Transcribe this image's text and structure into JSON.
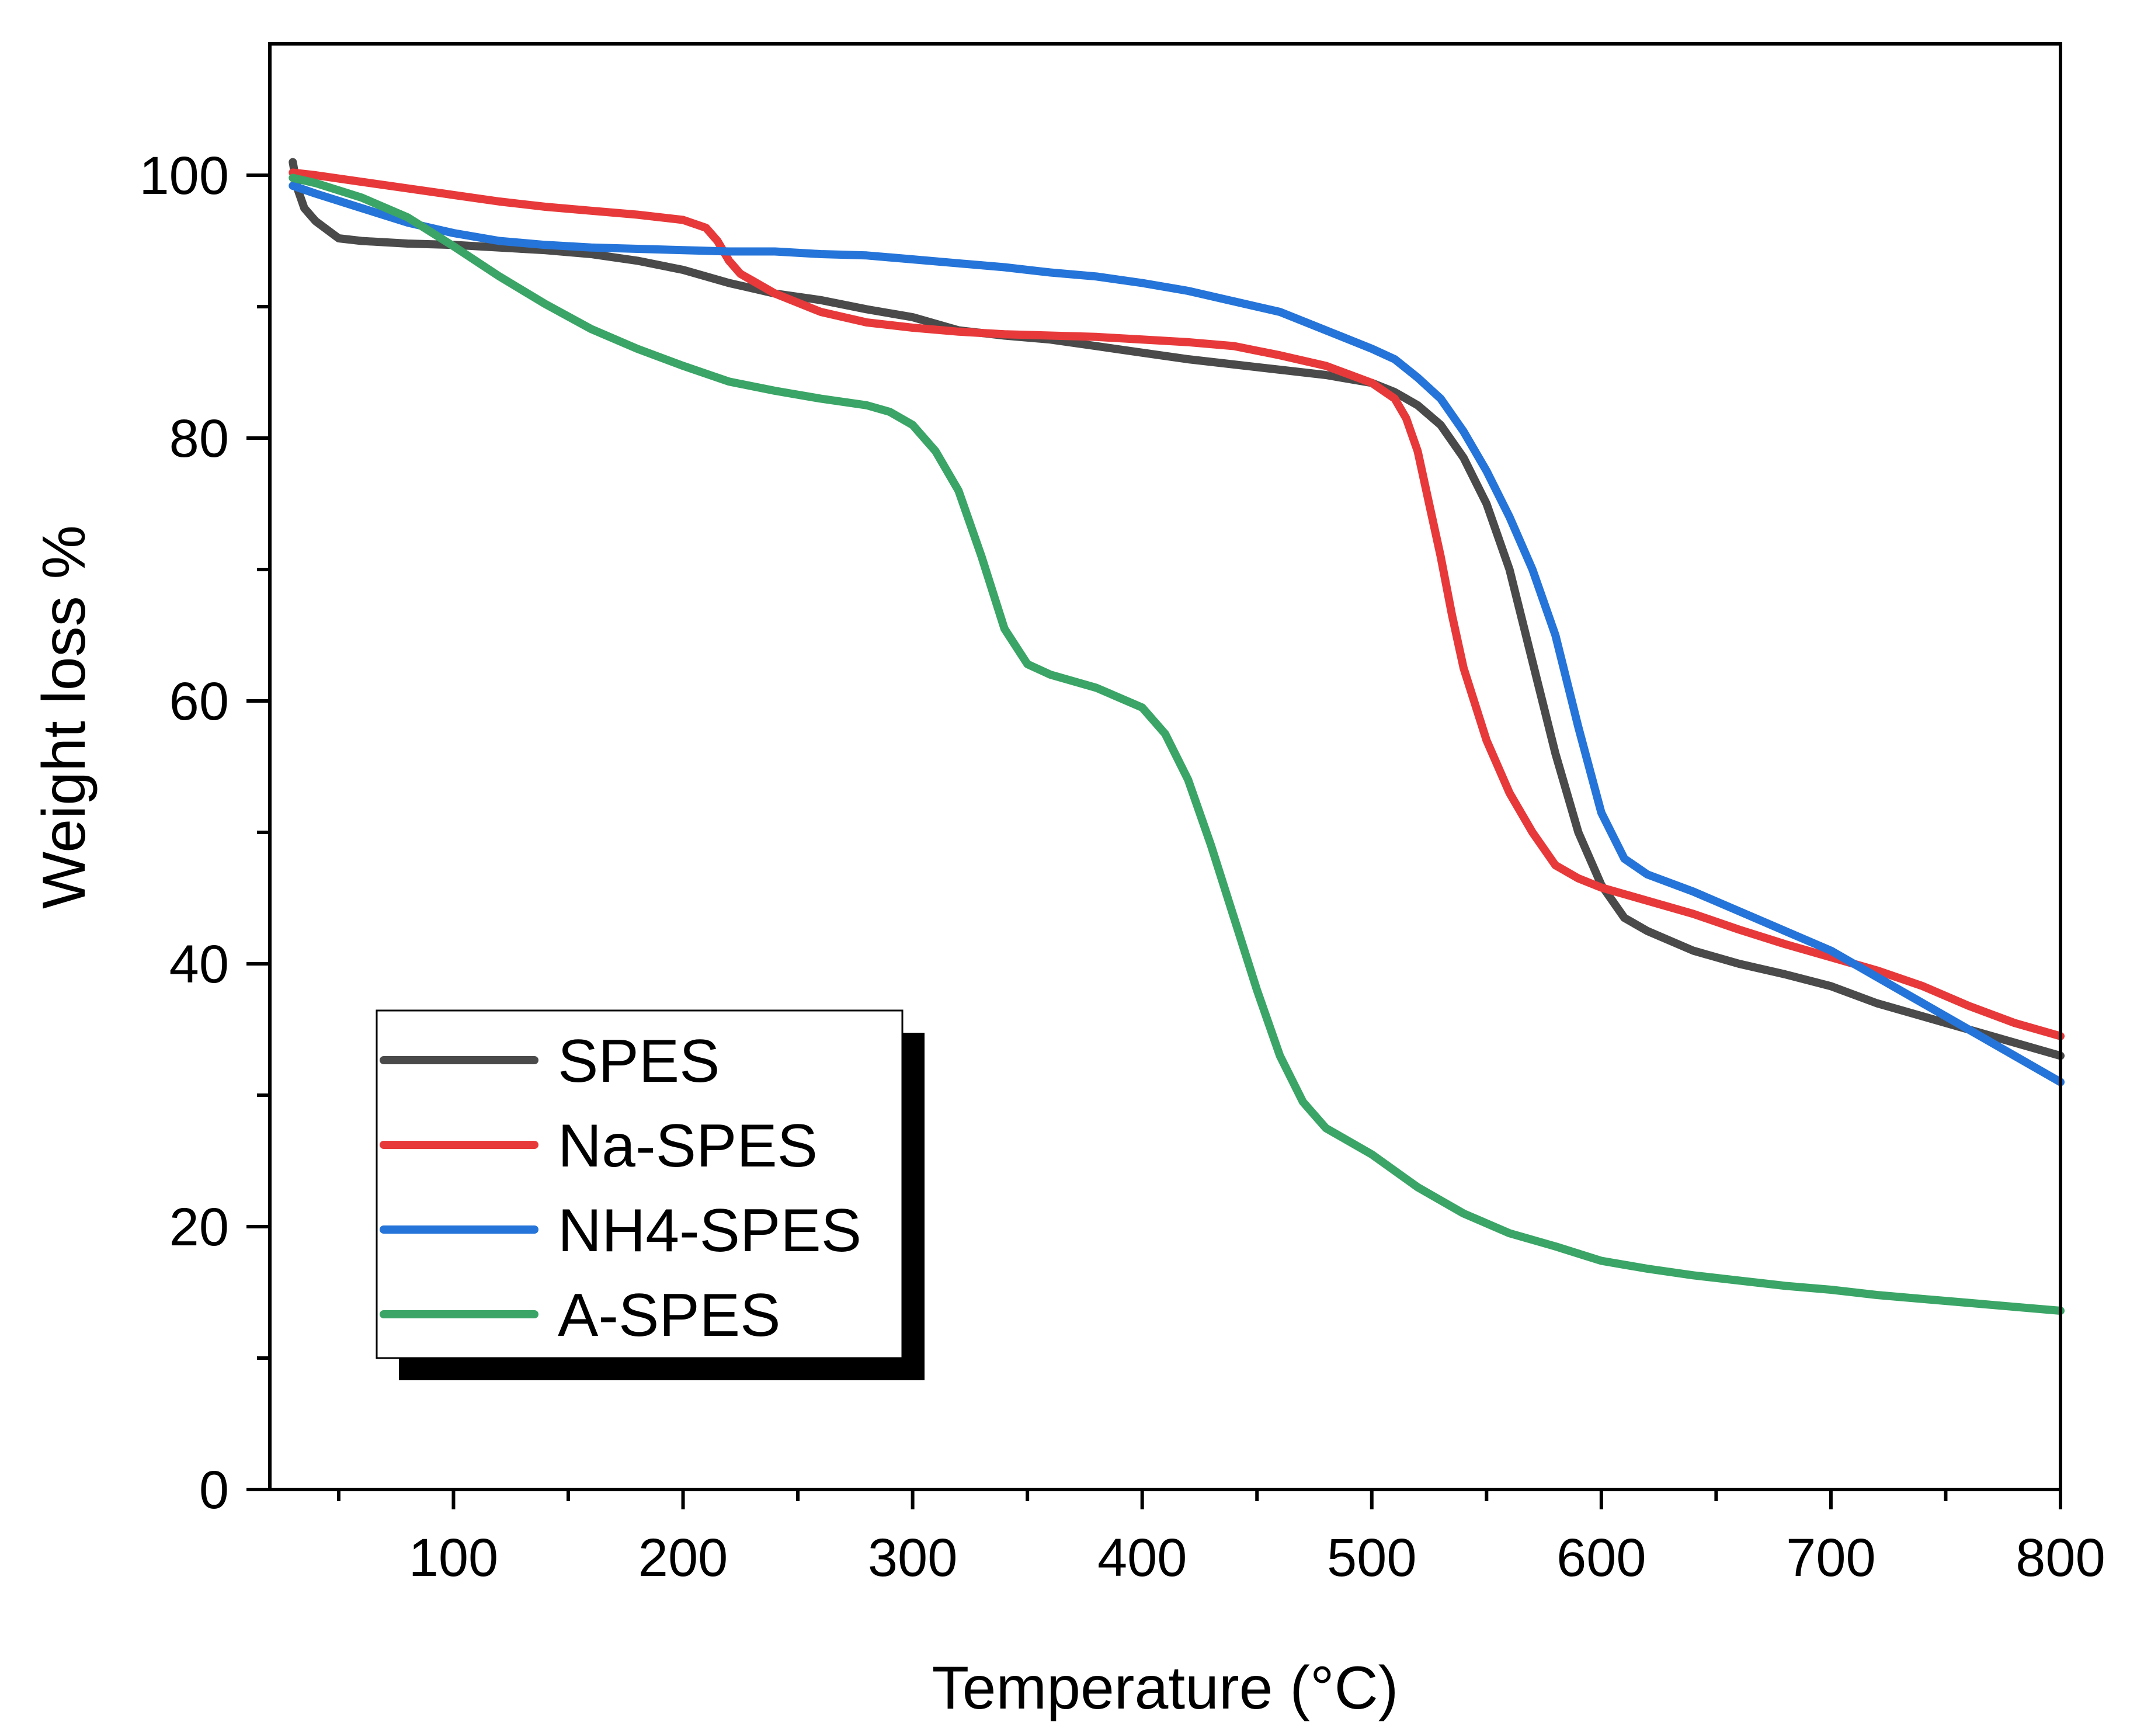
{
  "chart_data": {
    "type": "line",
    "title": "",
    "xlabel": "Temperature (°C)",
    "ylabel": "Weight loss %",
    "xlim": [
      20,
      800
    ],
    "ylim": [
      0,
      110
    ],
    "xticks": [
      100,
      200,
      300,
      400,
      500,
      600,
      700,
      800
    ],
    "xtick_labels": [
      "100",
      "200",
      "300",
      "400",
      "500",
      "600",
      "700",
      "800"
    ],
    "xticks_minor": [
      50,
      150,
      250,
      350,
      450,
      550,
      650,
      750
    ],
    "yticks": [
      0,
      20,
      40,
      60,
      80,
      100
    ],
    "ytick_labels": [
      "0",
      "20",
      "40",
      "60",
      "80",
      "100"
    ],
    "yticks_minor": [
      10,
      30,
      50,
      70,
      90
    ],
    "grid": false,
    "legend_position": "bottom-left",
    "series": [
      {
        "name": "SPES",
        "color": "#4a4a4a",
        "x": [
          30,
          32,
          35,
          40,
          50,
          60,
          80,
          100,
          120,
          140,
          160,
          180,
          200,
          220,
          240,
          260,
          280,
          300,
          320,
          340,
          360,
          380,
          400,
          420,
          440,
          460,
          480,
          500,
          510,
          520,
          530,
          540,
          550,
          560,
          570,
          580,
          590,
          600,
          610,
          620,
          640,
          660,
          680,
          700,
          720,
          740,
          760,
          780,
          800
        ],
        "y": [
          101,
          99,
          97.5,
          96.5,
          95.2,
          95,
          94.8,
          94.7,
          94.5,
          94.3,
          94,
          93.5,
          92.8,
          91.8,
          91,
          90.5,
          89.8,
          89.2,
          88.2,
          87.8,
          87.5,
          87,
          86.5,
          86,
          85.6,
          85.2,
          84.8,
          84.2,
          83.5,
          82.5,
          81,
          78.5,
          75,
          70,
          63,
          56,
          50,
          46,
          43.5,
          42.5,
          41,
          40,
          39.2,
          38.3,
          37,
          36,
          35,
          34,
          33
        ]
      },
      {
        "name": "Na-SPES",
        "color": "#e8393a",
        "x": [
          30,
          40,
          60,
          80,
          100,
          120,
          140,
          160,
          180,
          200,
          210,
          215,
          220,
          225,
          230,
          240,
          250,
          260,
          280,
          300,
          320,
          340,
          360,
          380,
          400,
          420,
          440,
          460,
          480,
          500,
          510,
          515,
          520,
          525,
          530,
          535,
          540,
          550,
          560,
          570,
          580,
          590,
          600,
          620,
          640,
          660,
          680,
          700,
          720,
          740,
          760,
          780,
          800
        ],
        "y": [
          100.2,
          100,
          99.5,
          99,
          98.5,
          98,
          97.6,
          97.3,
          97,
          96.6,
          96,
          95,
          93.5,
          92.5,
          92,
          91,
          90.3,
          89.6,
          88.8,
          88.4,
          88.1,
          87.9,
          87.8,
          87.7,
          87.5,
          87.3,
          87,
          86.3,
          85.5,
          84.2,
          83,
          81.5,
          79,
          75,
          71,
          66.5,
          62.5,
          57,
          53,
          50,
          47.5,
          46.5,
          45.8,
          44.8,
          43.8,
          42.6,
          41.5,
          40.5,
          39.5,
          38.3,
          36.8,
          35.5,
          34.5
        ]
      },
      {
        "name": "NH4-SPES",
        "color": "#2574d9",
        "x": [
          30,
          40,
          60,
          80,
          100,
          120,
          140,
          160,
          180,
          200,
          220,
          240,
          260,
          280,
          300,
          320,
          340,
          360,
          380,
          400,
          420,
          440,
          460,
          480,
          500,
          510,
          520,
          530,
          540,
          550,
          560,
          570,
          580,
          590,
          600,
          610,
          620,
          640,
          660,
          680,
          700,
          720,
          740,
          760,
          780,
          800
        ],
        "y": [
          99.2,
          98.6,
          97.5,
          96.4,
          95.6,
          95,
          94.7,
          94.5,
          94.4,
          94.3,
          94.2,
          94.2,
          94,
          93.9,
          93.6,
          93.3,
          93,
          92.6,
          92.3,
          91.8,
          91.2,
          90.4,
          89.6,
          88.2,
          86.8,
          86,
          84.6,
          83,
          80.5,
          77.5,
          74,
          70,
          65,
          58,
          51.5,
          48,
          46.8,
          45.5,
          44,
          42.5,
          41,
          39,
          37,
          35,
          33,
          31
        ]
      },
      {
        "name": "A-SPES",
        "color": "#3aa566",
        "x": [
          30,
          40,
          60,
          80,
          100,
          120,
          140,
          160,
          180,
          200,
          220,
          240,
          260,
          280,
          290,
          300,
          310,
          320,
          330,
          340,
          350,
          360,
          380,
          400,
          410,
          420,
          430,
          440,
          450,
          460,
          470,
          480,
          500,
          520,
          540,
          560,
          580,
          600,
          620,
          640,
          660,
          680,
          700,
          720,
          740,
          760,
          780,
          800
        ],
        "y": [
          99.8,
          99.4,
          98.3,
          96.8,
          94.6,
          92.3,
          90.2,
          88.3,
          86.8,
          85.5,
          84.3,
          83.6,
          83,
          82.5,
          82,
          81,
          79,
          76,
          71,
          65.5,
          62.8,
          62,
          61,
          59.5,
          57.5,
          54,
          49,
          43.5,
          38,
          33,
          29.5,
          27.5,
          25.5,
          23,
          21,
          19.5,
          18.5,
          17.4,
          16.8,
          16.3,
          15.9,
          15.5,
          15.2,
          14.8,
          14.5,
          14.2,
          13.9,
          13.6
        ]
      }
    ]
  }
}
